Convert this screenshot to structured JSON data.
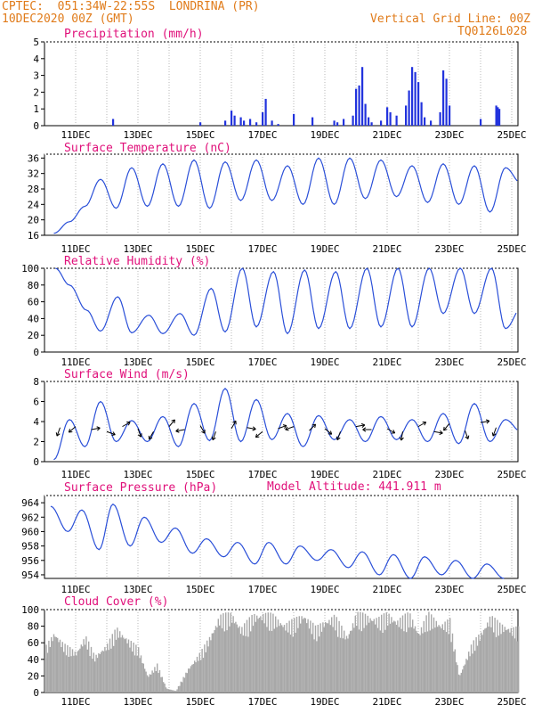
{
  "header": {
    "org_location": "CPTEC:  051:34W-22:55S  LONDRINA (PR)",
    "run_time": "10DEC2020 00Z (GMT)",
    "grid_note": "Vertical Grid Line: 00Z",
    "station_code": "TQ0126L028",
    "model_altitude": "Model Altitude: 441.911 m"
  },
  "colors": {
    "header": "#e07b1a",
    "titles": "#e0107a",
    "line": "#2a4fd8",
    "cloud": "#a8a8a8",
    "bar": "#2233dd"
  },
  "chart_data": [
    {
      "type": "bar",
      "title": "Precipitation (mm/h)",
      "ylim": [
        0,
        5
      ],
      "yticks": [
        0,
        1,
        2,
        3,
        4,
        5
      ],
      "xticks": [
        "11DEC",
        "13DEC",
        "15DEC",
        "17DEC",
        "19DEC",
        "21DEC",
        "23DEC",
        "25DEC"
      ],
      "x_unit": "day offset from 10DEC 00Z",
      "x": [
        2.2,
        5.0,
        5.8,
        6.0,
        6.1,
        6.3,
        6.4,
        6.6,
        6.8,
        7.0,
        7.1,
        7.3,
        7.5,
        8.0,
        8.6,
        9.3,
        9.4,
        9.6,
        9.9,
        10.0,
        10.1,
        10.2,
        10.3,
        10.4,
        10.5,
        10.8,
        11.0,
        11.1,
        11.3,
        11.6,
        11.7,
        11.8,
        11.9,
        12.0,
        12.1,
        12.2,
        12.4,
        12.7,
        12.8,
        12.9,
        13.0,
        14.0,
        14.5,
        14.55,
        14.6
      ],
      "values": [
        0.4,
        0.2,
        0.3,
        0.9,
        0.6,
        0.5,
        0.3,
        0.4,
        0.2,
        0.8,
        1.6,
        0.3,
        0.1,
        0.7,
        0.5,
        0.3,
        0.2,
        0.4,
        0.6,
        2.2,
        2.4,
        3.5,
        1.3,
        0.5,
        0.2,
        0.3,
        1.1,
        0.8,
        0.6,
        1.2,
        2.1,
        3.5,
        3.2,
        2.6,
        1.4,
        0.5,
        0.3,
        0.8,
        3.3,
        2.8,
        1.2,
        0.4,
        1.2,
        1.1,
        1.0
      ]
    },
    {
      "type": "line",
      "title": "Surface Temperature (nC)",
      "ylim": [
        16,
        37
      ],
      "yticks": [
        16,
        20,
        24,
        28,
        32,
        36
      ],
      "xticks": [
        "11DEC",
        "13DEC",
        "15DEC",
        "17DEC",
        "19DEC",
        "21DEC",
        "23DEC",
        "25DEC"
      ],
      "x_unit": "day offset from 10DEC 00Z",
      "daily_max": [
        19.5,
        30.5,
        33.5,
        34.5,
        35.5,
        35,
        35.5,
        34,
        36,
        36,
        35.5,
        34,
        34.5,
        34,
        33.5,
        33.5
      ],
      "daily_min": [
        16.5,
        23.5,
        23,
        23.5,
        23.5,
        23,
        25,
        25,
        24,
        24,
        25.5,
        26,
        24.5,
        24,
        22,
        29.5
      ]
    },
    {
      "type": "line",
      "title": "Relative Humidity (%)",
      "ylim": [
        0,
        100
      ],
      "yticks": [
        0,
        20,
        40,
        60,
        80,
        100
      ],
      "xticks": [
        "11DEC",
        "13DEC",
        "15DEC",
        "17DEC",
        "19DEC",
        "21DEC",
        "23DEC",
        "25DEC"
      ],
      "x_unit": "day offset from 10DEC 00Z",
      "daily_max": [
        100,
        50,
        66,
        44,
        46,
        76,
        100,
        96,
        98,
        96,
        100,
        100,
        100,
        100,
        100,
        55
      ],
      "daily_min": [
        80,
        25,
        23,
        22,
        20,
        24,
        30,
        22,
        28,
        28,
        30,
        30,
        46,
        46,
        28,
        30
      ]
    },
    {
      "type": "line",
      "title": "Surface Wind (m/s)",
      "ylim": [
        0,
        8
      ],
      "yticks": [
        0,
        2,
        4,
        6,
        8
      ],
      "xticks": [
        "11DEC",
        "13DEC",
        "15DEC",
        "17DEC",
        "19DEC",
        "21DEC",
        "23DEC",
        "25DEC"
      ],
      "x_unit": "day offset from 10DEC 00Z",
      "daily_max": [
        4.2,
        6.0,
        4.1,
        4.5,
        5.8,
        7.3,
        6.2,
        4.8,
        4.6,
        4.2,
        4.5,
        4.2,
        4.8,
        5.8,
        4.2,
        3.5
      ],
      "daily_min": [
        0.2,
        1.5,
        2.0,
        2.0,
        1.5,
        2.1,
        2.0,
        2.2,
        1.5,
        2.2,
        2.0,
        2.2,
        2.0,
        1.8,
        2.0,
        3.0
      ],
      "arrows": {
        "x": [
          0.5,
          1.0,
          1.5,
          2.0,
          2.5,
          3.0,
          3.5,
          4.0,
          4.5,
          5.0,
          5.5,
          6.0,
          6.5,
          7.0,
          7.5,
          8.0,
          8.5,
          9.0,
          9.5,
          10.0,
          10.5,
          11.0,
          11.5,
          12.0,
          12.5,
          13.0,
          13.5,
          14.0,
          14.5
        ],
        "y": [
          3.4,
          3.5,
          3.2,
          3.0,
          3.5,
          3.3,
          3.0,
          3.5,
          3.2,
          3.6,
          3.0,
          3.3,
          3.4,
          3.0,
          3.3,
          3.5,
          3.1,
          3.3,
          3.0,
          3.5,
          3.2,
          3.3,
          3.0,
          3.5,
          3.0,
          3.8,
          3.1,
          3.9,
          3.4
        ],
        "dir_deg": [
          200,
          230,
          80,
          110,
          60,
          160,
          210,
          40,
          260,
          150,
          200,
          30,
          100,
          230,
          70,
          250,
          45,
          130,
          200,
          80,
          270,
          120,
          190,
          60,
          100,
          220,
          160,
          80,
          200
        ]
      }
    },
    {
      "type": "line",
      "title": "Surface Pressure (hPa)",
      "ylim": [
        953.5,
        965
      ],
      "yticks": [
        954,
        956,
        958,
        960,
        962,
        964
      ],
      "xticks": [
        "11DEC",
        "13DEC",
        "15DEC",
        "17DEC",
        "19DEC",
        "21DEC",
        "23DEC",
        "25DEC"
      ],
      "x_unit": "day offset from 10DEC 00Z",
      "daily_max": [
        963.5,
        963.0,
        963.8,
        962.0,
        960.5,
        959.0,
        958.5,
        958.5,
        958.0,
        957.5,
        957.2,
        956.8,
        956.5,
        956.0,
        955.5
      ],
      "daily_min": [
        960.0,
        957.5,
        958.0,
        958.5,
        957.0,
        956.5,
        955.5,
        955.5,
        956.0,
        955.0,
        954.0,
        953.5,
        954.0,
        953.5,
        953.5
      ]
    },
    {
      "type": "area",
      "title": "Cloud Cover (%)",
      "ylim": [
        0,
        100
      ],
      "yticks": [
        0,
        20,
        40,
        60,
        80,
        100
      ],
      "xticks": [
        "11DEC",
        "13DEC",
        "15DEC",
        "17DEC",
        "19DEC",
        "21DEC",
        "23DEC",
        "25DEC"
      ],
      "x_unit": "day offset from 10DEC 00Z",
      "x": [
        0,
        0.3,
        0.6,
        1.0,
        1.3,
        1.6,
        2.0,
        2.3,
        2.7,
        3.0,
        3.3,
        3.6,
        3.9,
        4.2,
        4.6,
        5.0,
        5.3,
        5.6,
        6.0,
        6.3,
        6.7,
        7.0,
        7.3,
        7.7,
        8.0,
        8.3,
        8.7,
        9.0,
        9.3,
        9.7,
        10.0,
        10.3,
        10.7,
        11.0,
        11.3,
        11.7,
        12.0,
        12.3,
        12.7,
        13.0,
        13.3,
        13.7,
        14.0,
        14.3,
        14.6,
        15.0
      ],
      "values": [
        55,
        75,
        60,
        50,
        70,
        45,
        60,
        80,
        65,
        55,
        20,
        35,
        5,
        2,
        30,
        50,
        70,
        95,
        98,
        80,
        97,
        98,
        96,
        85,
        90,
        98,
        80,
        90,
        95,
        70,
        98,
        96,
        92,
        98,
        90,
        98,
        75,
        98,
        85,
        90,
        20,
        60,
        75,
        95,
        85,
        80
      ]
    }
  ]
}
